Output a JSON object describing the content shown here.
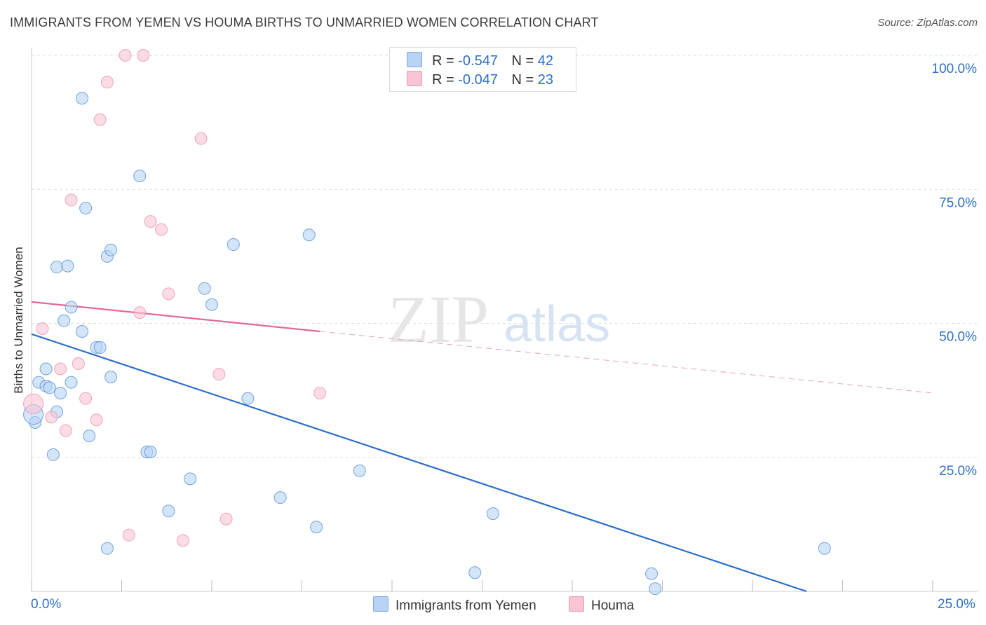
{
  "header": {
    "title": "IMMIGRANTS FROM YEMEN VS HOUMA BIRTHS TO UNMARRIED WOMEN CORRELATION CHART",
    "source": "Source: ZipAtlas.com"
  },
  "watermark": {
    "zip": "ZIP",
    "atlas": "atlas"
  },
  "legend": {
    "rows": [
      {
        "r_label": "R =",
        "r_value": "-0.547",
        "n_label": "N =",
        "n_value": "42",
        "color": "#b8d3f4"
      },
      {
        "r_label": "R =",
        "r_value": "-0.047",
        "n_label": "N =",
        "n_value": "23",
        "color": "#f9c4d4"
      }
    ]
  },
  "bottom_legend": {
    "series1": "Immigrants from Yemen",
    "series2": "Houma"
  },
  "chart_data": {
    "type": "scatter",
    "title": "IMMIGRANTS FROM YEMEN VS HOUMA BIRTHS TO UNMARRIED WOMEN CORRELATION CHART",
    "xlabel": "",
    "ylabel": "Births to Unmarried Women",
    "xlim": [
      0,
      25
    ],
    "ylim": [
      0,
      100
    ],
    "x_tick_labels": [
      "0.0%",
      "25.0%"
    ],
    "y_tick_labels": [
      "100.0%",
      "75.0%",
      "50.0%",
      "25.0%"
    ],
    "y_ticks": [
      100,
      75,
      50,
      25
    ],
    "grid": true,
    "series": [
      {
        "name": "Immigrants from Yemen",
        "color": "#4a8ad8",
        "fill": "#b8d3f4",
        "points": [
          [
            1.4,
            92.0
          ],
          [
            3.0,
            77.5
          ],
          [
            1.5,
            71.5
          ],
          [
            2.1,
            62.5
          ],
          [
            2.2,
            63.7
          ],
          [
            5.6,
            64.7
          ],
          [
            7.7,
            66.5
          ],
          [
            0.7,
            60.5
          ],
          [
            1.0,
            60.7
          ],
          [
            4.8,
            56.5
          ],
          [
            5.0,
            53.5
          ],
          [
            1.1,
            53.0
          ],
          [
            0.9,
            50.5
          ],
          [
            1.4,
            48.5
          ],
          [
            1.8,
            45.5
          ],
          [
            1.9,
            45.5
          ],
          [
            0.4,
            41.5
          ],
          [
            2.2,
            40.0
          ],
          [
            0.2,
            39.0
          ],
          [
            0.4,
            38.3
          ],
          [
            0.5,
            38.0
          ],
          [
            1.1,
            39.0
          ],
          [
            0.8,
            37.0
          ],
          [
            6.0,
            36.0
          ],
          [
            0.7,
            33.5
          ],
          [
            0.1,
            31.5
          ],
          [
            1.6,
            29.0
          ],
          [
            0.6,
            25.5
          ],
          [
            3.2,
            26.0
          ],
          [
            3.3,
            26.0
          ],
          [
            9.1,
            22.5
          ],
          [
            4.4,
            21.0
          ],
          [
            6.9,
            17.5
          ],
          [
            3.8,
            15.0
          ],
          [
            12.8,
            14.5
          ],
          [
            7.9,
            12.0
          ],
          [
            2.1,
            8.0
          ],
          [
            22.0,
            8.0
          ],
          [
            12.3,
            3.5
          ],
          [
            17.2,
            3.3
          ],
          [
            17.3,
            0.5
          ],
          [
            0.05,
            33.0
          ]
        ]
      },
      {
        "name": "Houma",
        "color": "#e98aa8",
        "fill": "#f9c4d4",
        "points": [
          [
            2.6,
            100.0
          ],
          [
            3.1,
            100.0
          ],
          [
            2.1,
            95.0
          ],
          [
            1.9,
            88.0
          ],
          [
            4.7,
            84.5
          ],
          [
            1.1,
            73.0
          ],
          [
            3.3,
            69.0
          ],
          [
            3.6,
            67.5
          ],
          [
            3.8,
            55.5
          ],
          [
            3.0,
            52.0
          ],
          [
            0.3,
            49.0
          ],
          [
            0.8,
            41.5
          ],
          [
            1.3,
            42.5
          ],
          [
            5.2,
            40.5
          ],
          [
            8.0,
            37.0
          ],
          [
            1.5,
            36.0
          ],
          [
            0.55,
            32.5
          ],
          [
            1.8,
            32.0
          ],
          [
            0.95,
            30.0
          ],
          [
            5.4,
            13.5
          ],
          [
            2.7,
            10.5
          ],
          [
            4.2,
            9.5
          ],
          [
            0.05,
            35.0
          ]
        ]
      }
    ],
    "trendlines": [
      {
        "series": "Immigrants from Yemen",
        "from": [
          0,
          48.0
        ],
        "to": [
          21.5,
          0
        ],
        "style": "solid",
        "color": "#2b6fc7"
      },
      {
        "series": "Houma",
        "from": [
          0,
          54.0
        ],
        "to": [
          8.0,
          48.5
        ],
        "style": "solid",
        "color": "#e26a8e"
      },
      {
        "series": "Houma",
        "from": [
          8.0,
          48.5
        ],
        "to": [
          25.0,
          37.0
        ],
        "style": "dashed",
        "color": "#e8a3b8"
      }
    ]
  }
}
